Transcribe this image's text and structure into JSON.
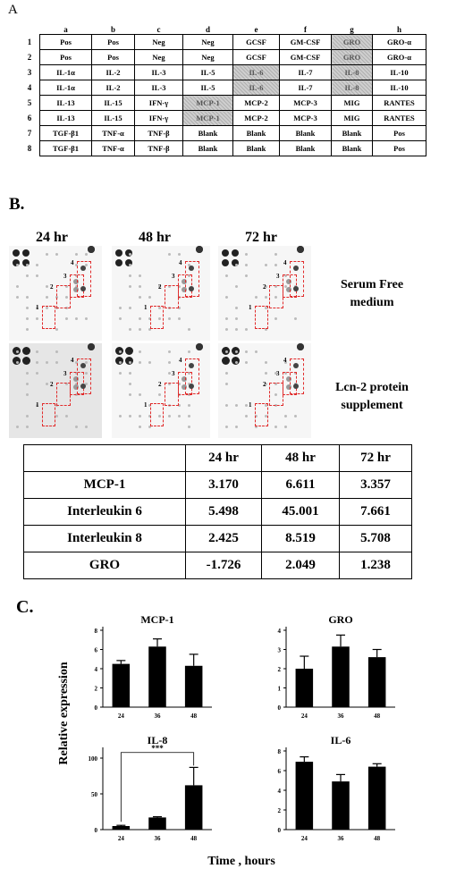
{
  "panel_a_label": "A",
  "panel_b_label": "B.",
  "panel_c_label": "C.",
  "array_table": {
    "columns": [
      "a",
      "b",
      "c",
      "d",
      "e",
      "f",
      "g",
      "h"
    ],
    "rows": [
      {
        "n": "1",
        "cells": [
          "Pos",
          "Pos",
          "Neg",
          "Neg",
          "GCSF",
          "GM-CSF",
          "GRO",
          "GRO-α"
        ]
      },
      {
        "n": "2",
        "cells": [
          "Pos",
          "Pos",
          "Neg",
          "Neg",
          "GCSF",
          "GM-CSF",
          "GRO",
          "GRO-α"
        ]
      },
      {
        "n": "3",
        "cells": [
          "IL-1α",
          "IL-2",
          "IL-3",
          "IL-5",
          "IL-6",
          "IL-7",
          "IL-8",
          "IL-10"
        ]
      },
      {
        "n": "4",
        "cells": [
          "IL-1α",
          "IL-2",
          "IL-3",
          "IL-5",
          "IL-6",
          "IL-7",
          "IL-8",
          "IL-10"
        ]
      },
      {
        "n": "5",
        "cells": [
          "IL-13",
          "IL-15",
          "IFN-γ",
          "MCP-1",
          "MCP-2",
          "MCP-3",
          "MIG",
          "RANTES"
        ]
      },
      {
        "n": "6",
        "cells": [
          "IL-13",
          "IL-15",
          "IFN-γ",
          "MCP-1",
          "MCP-2",
          "MCP-3",
          "MIG",
          "RANTES"
        ]
      },
      {
        "n": "7",
        "cells": [
          "TGF-β1",
          "TNF-α",
          "TNF-β",
          "Blank",
          "Blank",
          "Blank",
          "Blank",
          "Pos"
        ]
      },
      {
        "n": "8",
        "cells": [
          "TGF-β1",
          "TNF-α",
          "TNF-β",
          "Blank",
          "Blank",
          "Blank",
          "Blank",
          "Pos"
        ]
      }
    ]
  },
  "blots": {
    "time_labels": [
      "24 hr",
      "48 hr",
      "72 hr"
    ],
    "row_labels": [
      "Serum Free\nmedium",
      "Lcn-2 protein\nsupplement"
    ],
    "box_numbers": [
      "1",
      "2",
      "3",
      "4"
    ]
  },
  "fold_table": {
    "headers": [
      "",
      "24 hr",
      "48 hr",
      "72 hr"
    ],
    "rows": [
      [
        "MCP-1",
        "3.170",
        "6.611",
        "3.357"
      ],
      [
        "Interleukin 6",
        "5.498",
        "45.001",
        "7.661"
      ],
      [
        "Interleukin 8",
        "2.425",
        "8.519",
        "5.708"
      ],
      [
        "GRO",
        "-1.726",
        "2.049",
        "1.238"
      ]
    ]
  },
  "ylabel": "Relative expression",
  "xlabel": "Time , hours",
  "chart_data": [
    {
      "type": "bar",
      "title": "MCP-1",
      "categories": [
        "24",
        "36",
        "48"
      ],
      "values": [
        4.5,
        6.3,
        4.3
      ],
      "errors": [
        0.35,
        0.8,
        1.2
      ],
      "ylim": [
        0,
        8
      ],
      "yticks": [
        0,
        2,
        4,
        6,
        8
      ]
    },
    {
      "type": "bar",
      "title": "GRO",
      "categories": [
        "24",
        "36",
        "48"
      ],
      "values": [
        2.0,
        3.15,
        2.6
      ],
      "errors": [
        0.65,
        0.6,
        0.4
      ],
      "ylim": [
        0,
        4
      ],
      "yticks": [
        0,
        1,
        2,
        3,
        4
      ]
    },
    {
      "type": "bar",
      "title": "IL-8",
      "categories": [
        "24",
        "36",
        "48"
      ],
      "values": [
        5,
        17,
        62
      ],
      "errors": [
        1,
        1,
        25
      ],
      "ylim": [
        0,
        110
      ],
      "yticks": [
        0,
        50,
        100
      ],
      "annotation": "***"
    },
    {
      "type": "bar",
      "title": "IL-6",
      "categories": [
        "24",
        "36",
        "48"
      ],
      "values": [
        6.9,
        4.9,
        6.4
      ],
      "errors": [
        0.5,
        0.7,
        0.3
      ],
      "ylim": [
        0,
        8
      ],
      "yticks": [
        0,
        2,
        4,
        6,
        8
      ]
    }
  ]
}
